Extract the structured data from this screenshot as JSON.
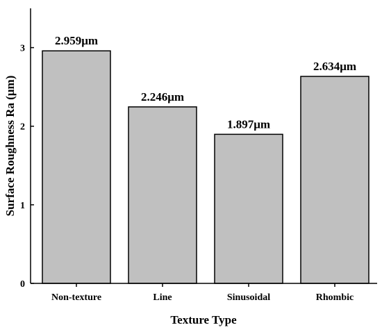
{
  "chart_data": {
    "type": "bar",
    "categories": [
      "Non-texture",
      "Line",
      "Sinusoidal",
      "Rhombic"
    ],
    "values": [
      2.959,
      2.246,
      1.897,
      2.634
    ],
    "data_labels": [
      "2.959μm",
      "2.246μm",
      "1.897μm",
      "2.634μm"
    ],
    "xlabel": "Texture Type",
    "ylabel": "Surface Roughness Ra (μm)",
    "ylim": [
      0,
      3.5
    ],
    "yticks": [
      "0",
      "1",
      "2",
      "3"
    ],
    "grid": false,
    "bar_color": "#c0c0c0",
    "bar_edge_color": "#000000"
  }
}
